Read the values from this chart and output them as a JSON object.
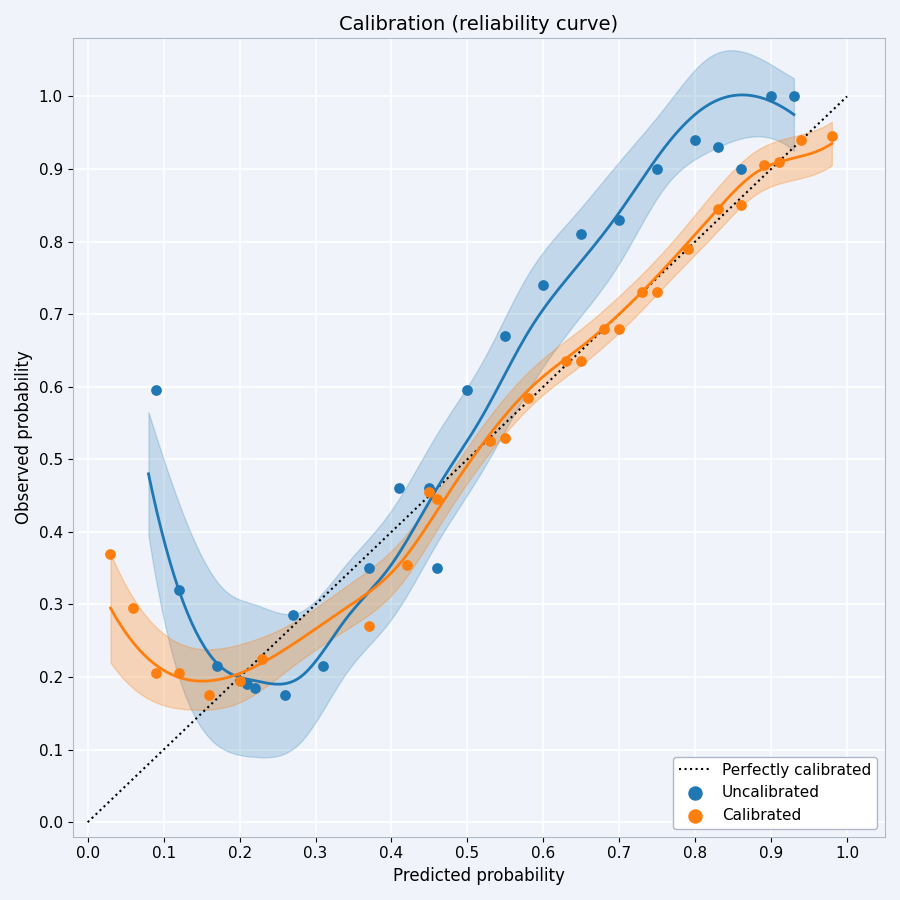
{
  "title": "Calibration (reliability curve)",
  "xlabel": "Predicted probability",
  "ylabel": "Observed probability",
  "xlim": [
    -0.02,
    1.05
  ],
  "ylim": [
    -0.02,
    1.08
  ],
  "xticks": [
    0.0,
    0.1,
    0.2,
    0.3,
    0.4,
    0.5,
    0.6,
    0.7,
    0.8,
    0.9,
    1.0
  ],
  "yticks": [
    0.0,
    0.1,
    0.2,
    0.3,
    0.4,
    0.5,
    0.6,
    0.7,
    0.8,
    0.9,
    1.0
  ],
  "uncalibrated_scatter_x": [
    0.09,
    0.12,
    0.17,
    0.21,
    0.22,
    0.26,
    0.27,
    0.31,
    0.37,
    0.41,
    0.45,
    0.46,
    0.5,
    0.55,
    0.6,
    0.65,
    0.7,
    0.75,
    0.8,
    0.83,
    0.86,
    0.9,
    0.93
  ],
  "uncalibrated_scatter_y": [
    0.595,
    0.32,
    0.215,
    0.19,
    0.185,
    0.175,
    0.285,
    0.215,
    0.35,
    0.46,
    0.46,
    0.35,
    0.595,
    0.67,
    0.74,
    0.81,
    0.83,
    0.9,
    0.94,
    0.93,
    0.9,
    1.0,
    1.0
  ],
  "calibrated_scatter_x": [
    0.03,
    0.06,
    0.09,
    0.12,
    0.16,
    0.2,
    0.23,
    0.37,
    0.42,
    0.45,
    0.46,
    0.53,
    0.55,
    0.58,
    0.63,
    0.65,
    0.68,
    0.7,
    0.73,
    0.75,
    0.79,
    0.83,
    0.86,
    0.89,
    0.91,
    0.94,
    0.98
  ],
  "calibrated_scatter_y": [
    0.37,
    0.295,
    0.205,
    0.205,
    0.175,
    0.195,
    0.225,
    0.27,
    0.355,
    0.455,
    0.445,
    0.525,
    0.53,
    0.585,
    0.635,
    0.635,
    0.68,
    0.68,
    0.73,
    0.73,
    0.79,
    0.845,
    0.85,
    0.905,
    0.91,
    0.94,
    0.945
  ],
  "uncal_curve_x": [
    0.08,
    0.12,
    0.18,
    0.22,
    0.28,
    0.34,
    0.4,
    0.46,
    0.52,
    0.58,
    0.64,
    0.7,
    0.76,
    0.82,
    0.88,
    0.93
  ],
  "uncal_curve_y": [
    0.48,
    0.32,
    0.21,
    0.195,
    0.2,
    0.28,
    0.355,
    0.46,
    0.56,
    0.675,
    0.76,
    0.84,
    0.93,
    0.99,
    1.0,
    0.975
  ],
  "cal_curve_x": [
    0.03,
    0.08,
    0.14,
    0.2,
    0.27,
    0.34,
    0.41,
    0.47,
    0.53,
    0.59,
    0.65,
    0.71,
    0.77,
    0.83,
    0.88,
    0.93,
    0.98
  ],
  "cal_curve_y": [
    0.295,
    0.225,
    0.195,
    0.205,
    0.245,
    0.295,
    0.355,
    0.445,
    0.535,
    0.605,
    0.655,
    0.71,
    0.775,
    0.845,
    0.895,
    0.915,
    0.935
  ],
  "uncal_band_upper_x": [
    0.08,
    0.12,
    0.18,
    0.22,
    0.28,
    0.34,
    0.4,
    0.46,
    0.52,
    0.58,
    0.64,
    0.7,
    0.76,
    0.82,
    0.88,
    0.93
  ],
  "uncal_band_upper_y": [
    0.565,
    0.44,
    0.32,
    0.3,
    0.29,
    0.355,
    0.43,
    0.535,
    0.635,
    0.755,
    0.835,
    0.91,
    0.985,
    1.055,
    1.055,
    1.025
  ],
  "uncal_band_lower_x": [
    0.08,
    0.12,
    0.18,
    0.22,
    0.28,
    0.34,
    0.4,
    0.46,
    0.52,
    0.58,
    0.64,
    0.7,
    0.76,
    0.82,
    0.88,
    0.93
  ],
  "uncal_band_lower_y": [
    0.395,
    0.2,
    0.1,
    0.09,
    0.11,
    0.205,
    0.28,
    0.385,
    0.485,
    0.595,
    0.685,
    0.77,
    0.875,
    0.925,
    0.945,
    0.925
  ],
  "cal_band_upper_x": [
    0.03,
    0.08,
    0.14,
    0.2,
    0.27,
    0.34,
    0.41,
    0.47,
    0.53,
    0.59,
    0.65,
    0.71,
    0.77,
    0.83,
    0.88,
    0.93,
    0.98
  ],
  "cal_band_upper_y": [
    0.37,
    0.28,
    0.24,
    0.245,
    0.275,
    0.325,
    0.385,
    0.47,
    0.56,
    0.63,
    0.68,
    0.735,
    0.8,
    0.875,
    0.925,
    0.945,
    0.965
  ],
  "cal_band_lower_x": [
    0.03,
    0.08,
    0.14,
    0.2,
    0.27,
    0.34,
    0.41,
    0.47,
    0.53,
    0.59,
    0.65,
    0.71,
    0.77,
    0.83,
    0.88,
    0.93,
    0.98
  ],
  "cal_band_lower_y": [
    0.22,
    0.17,
    0.155,
    0.165,
    0.215,
    0.265,
    0.325,
    0.42,
    0.51,
    0.58,
    0.63,
    0.685,
    0.75,
    0.815,
    0.865,
    0.885,
    0.905
  ],
  "blue_color": "#1f77b4",
  "orange_color": "#ff7f0e",
  "background_color": "#f0f4fa",
  "grid_color": "#ffffff",
  "title_fontsize": 14,
  "label_fontsize": 12,
  "tick_fontsize": 11
}
